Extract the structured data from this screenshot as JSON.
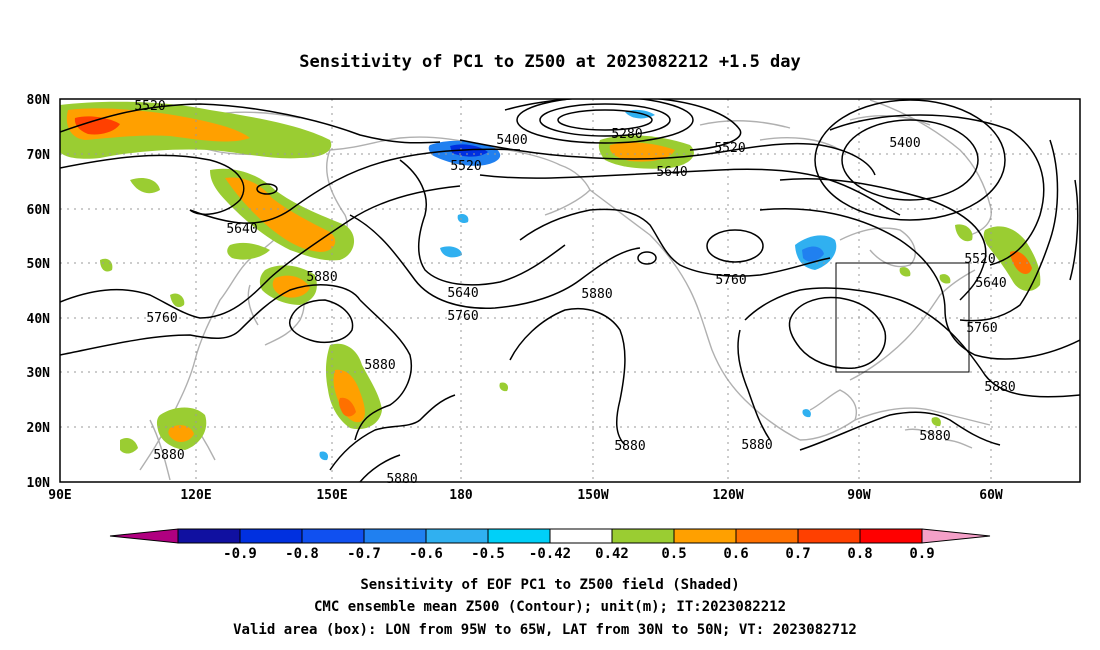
{
  "title": "Sensitivity of PC1 to Z500 at 2023082212 +1.5 day",
  "lat_labels": [
    "80N",
    "70N",
    "60N",
    "50N",
    "40N",
    "30N",
    "20N",
    "10N"
  ],
  "lon_labels": [
    "90E",
    "120E",
    "150E",
    "180",
    "150W",
    "120W",
    "90W",
    "60W"
  ],
  "contour_labels": [
    "5520",
    "5400",
    "5280",
    "5520",
    "5520",
    "5640",
    "5400",
    "5640",
    "5880",
    "5640",
    "5760",
    "5880",
    "5760",
    "5520",
    "5640",
    "5760",
    "5760",
    "5880",
    "5880",
    "5880",
    "5880",
    "5880",
    "5880",
    "5880"
  ],
  "colorbar": {
    "ticks": [
      "-0.9",
      "-0.8",
      "-0.7",
      "-0.6",
      "-0.5",
      "-0.42",
      "0.42",
      "0.5",
      "0.6",
      "0.7",
      "0.8",
      "0.9"
    ],
    "colors": [
      "#b00080",
      "#1010a0",
      "#0030e0",
      "#1050f0",
      "#2080f0",
      "#30b0f0",
      "#00d0f8",
      "#ffffff",
      "#9acd32",
      "#ffa000",
      "#ff7000",
      "#ff4000",
      "#ff0000",
      "#f4a0c8"
    ]
  },
  "footer": {
    "line1": "Sensitivity of EOF PC1 to Z500 field (Shaded)",
    "line2": "CMC ensemble mean Z500 (Contour); unit(m); IT:2023082212",
    "line3": "Valid area (box): LON from 95W to 65W, LAT from 30N to 50N; VT: 2023082712"
  },
  "valid_box": {
    "lon": [
      -95,
      -65
    ],
    "lat": [
      30,
      50
    ]
  }
}
